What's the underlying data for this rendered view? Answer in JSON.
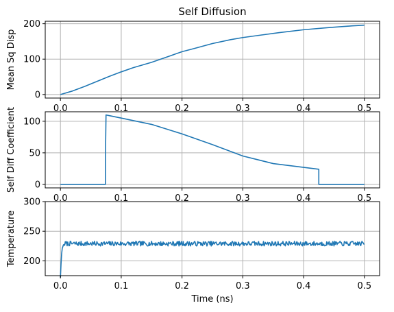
{
  "chart_data": [
    {
      "type": "line",
      "title": "Self Diffusion",
      "xlabel": "",
      "ylabel": "Mean Sq Disp",
      "xlim": [
        -0.025,
        0.525
      ],
      "ylim": [
        -10,
        207
      ],
      "xticks": [
        0.0,
        0.1,
        0.2,
        0.3,
        0.4,
        0.5
      ],
      "xtick_labels": [
        "0.0",
        "0.1",
        "0.2",
        "0.3",
        "0.4",
        "0.5"
      ],
      "yticks": [
        0,
        100,
        200
      ],
      "ytick_labels": [
        "0",
        "100",
        "200"
      ],
      "grid": true,
      "series": [
        {
          "name": "Mean Sq Disp",
          "color": "#1f77b4",
          "x": [
            0.0,
            0.02,
            0.04,
            0.06,
            0.08,
            0.1,
            0.12,
            0.15,
            0.18,
            0.2,
            0.22,
            0.25,
            0.28,
            0.3,
            0.33,
            0.36,
            0.4,
            0.44,
            0.48,
            0.5
          ],
          "y": [
            0,
            10,
            23,
            37,
            51,
            64,
            76,
            91,
            109,
            121,
            130,
            144,
            155,
            161,
            168,
            175,
            183,
            189,
            194,
            196
          ]
        }
      ]
    },
    {
      "type": "line",
      "title": "",
      "xlabel": "",
      "ylabel": "Self Diff Coefficient",
      "xlim": [
        -0.025,
        0.525
      ],
      "ylim": [
        -5.5,
        115
      ],
      "xticks": [
        0.0,
        0.1,
        0.2,
        0.3,
        0.4,
        0.5
      ],
      "xtick_labels": [
        "0.0",
        "0.1",
        "0.2",
        "0.3",
        "0.4",
        "0.5"
      ],
      "yticks": [
        0,
        50,
        100
      ],
      "ytick_labels": [
        "0",
        "50",
        "100"
      ],
      "grid": true,
      "series": [
        {
          "name": "Self Diff Coefficient",
          "color": "#1f77b4",
          "x": [
            0.0,
            0.074,
            0.074,
            0.075,
            0.08,
            0.1,
            0.15,
            0.2,
            0.25,
            0.3,
            0.35,
            0.4,
            0.425,
            0.425,
            0.5
          ],
          "y": [
            0,
            0,
            40,
            110,
            109,
            105,
            95,
            80,
            63,
            45,
            33,
            27,
            24,
            0,
            0
          ]
        }
      ]
    },
    {
      "type": "line",
      "title": "",
      "xlabel": "Time (ns)",
      "ylabel": "Temperature",
      "xlim": [
        -0.025,
        0.525
      ],
      "ylim": [
        175,
        300
      ],
      "xticks": [
        0.0,
        0.1,
        0.2,
        0.3,
        0.4,
        0.5
      ],
      "xtick_labels": [
        "0.0",
        "0.1",
        "0.2",
        "0.3",
        "0.4",
        "0.5"
      ],
      "yticks": [
        200,
        250,
        300
      ],
      "ytick_labels": [
        "200",
        "250",
        "300"
      ],
      "grid": true,
      "noise_amplitude": 4,
      "series": [
        {
          "name": "Temperature",
          "color": "#1f77b4",
          "x": [
            0.0,
            0.001,
            0.002,
            0.003,
            0.005,
            0.008,
            0.01,
            0.5
          ],
          "y": [
            172,
            195,
            212,
            221,
            227,
            229,
            229,
            229
          ]
        }
      ]
    }
  ]
}
